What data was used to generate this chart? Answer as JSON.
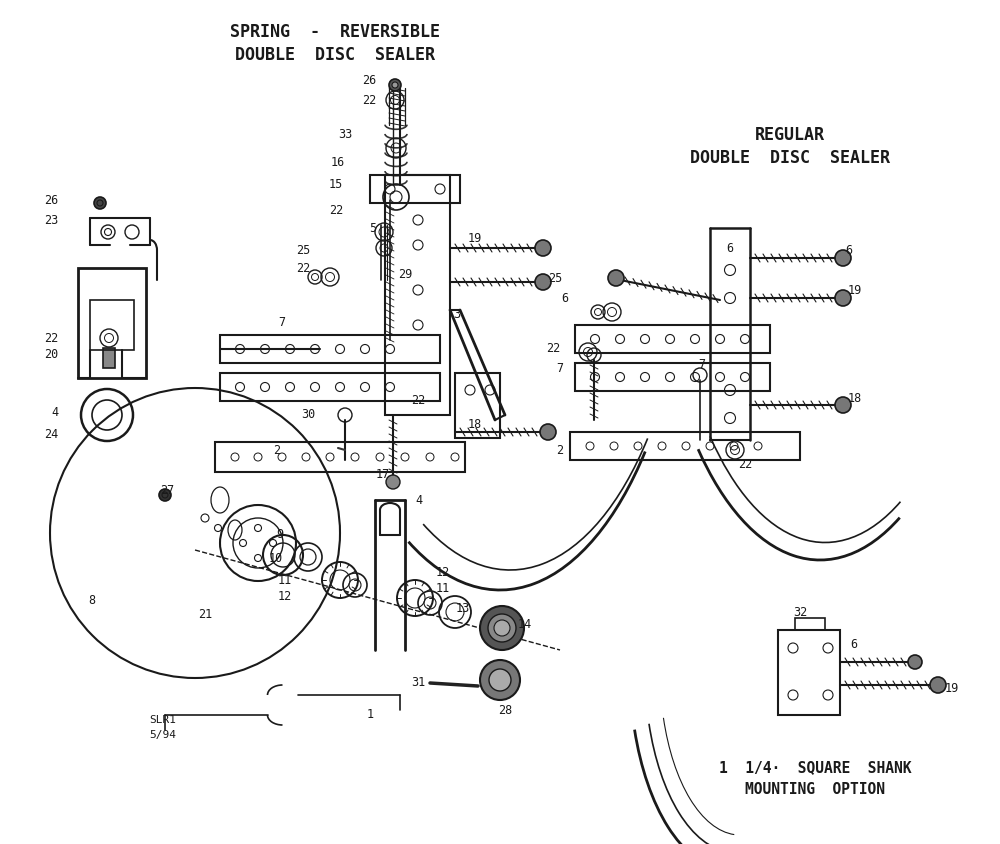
{
  "bg_color": "#ffffff",
  "line_color": "#1a1a1a",
  "text_color": "#1a1a1a",
  "font_size_title": 11,
  "font_size_label": 8.5,
  "fig_width": 10.0,
  "fig_height": 8.44,
  "dpi": 100,
  "title_spring": "SPRING  -  REVERSIBLE\n   DOUBLE  DISC  SEALER",
  "title_regular": "REGULAR\nDOUBLE  DISC  SEALER",
  "title_shank": "1  1/4·  SQUARE  SHANK\n    MOUNTING  OPTION",
  "watermark": "SLR1\n5/94"
}
